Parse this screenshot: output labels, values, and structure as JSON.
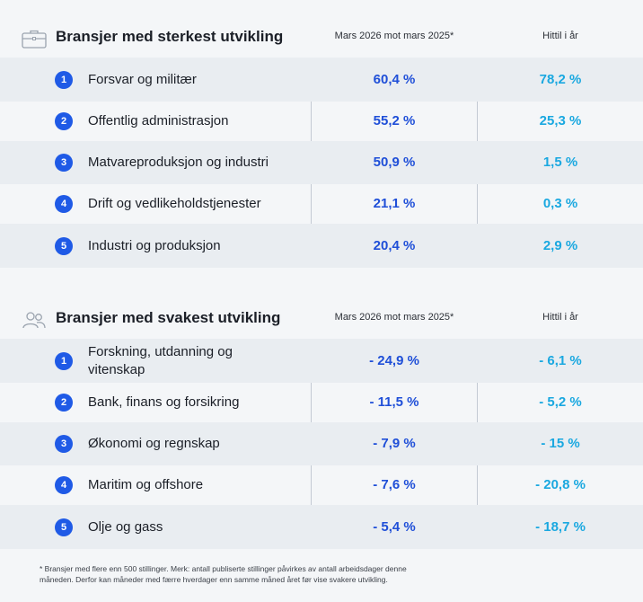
{
  "top": {
    "title": "Bransjer med sterkest utvikling",
    "icon": "briefcase-icon",
    "col1_header": "Mars 2026 mot mars 2025*",
    "col2_header": "Hittil i år",
    "rows": [
      {
        "rank": "1",
        "label": "Forsvar og militær",
        "value1": "60,4 %",
        "value2": "78,2 %"
      },
      {
        "rank": "2",
        "label": "Offentlig administrasjon",
        "value1": "55,2  %",
        "value2": "25,3 %"
      },
      {
        "rank": "3",
        "label": "Matvareproduksjon og industri",
        "value1": "50,9 %",
        "value2": "1,5 %"
      },
      {
        "rank": "4",
        "label": "Drift og vedlikeholdstjenester",
        "value1": "21,1 %",
        "value2": "0,3 %"
      },
      {
        "rank": "5",
        "label": "Industri og produksjon",
        "value1": "20,4 %",
        "value2": "2,9 %"
      }
    ]
  },
  "bottom": {
    "title": "Bransjer med svakest utvikling",
    "icon": "people-icon",
    "col1_header": "Mars 2026 mot mars 2025*",
    "col2_header": "Hittil i år",
    "rows": [
      {
        "rank": "1",
        "label": "Forskning, utdanning og vitenskap",
        "value1": "- 24,9 %",
        "value2": "- 6,1 %"
      },
      {
        "rank": "2",
        "label": "Bank, finans og forsikring",
        "value1": "- 11,5 %",
        "value2": "- 5,2 %"
      },
      {
        "rank": "3",
        "label": "Økonomi og regnskap",
        "value1": "- 7,9 %",
        "value2": "- 15 %"
      },
      {
        "rank": "4",
        "label": "Maritim og offshore",
        "value1": "- 7,6 %",
        "value2": "- 20,8 %"
      },
      {
        "rank": "5",
        "label": "Olje og gass",
        "value1": "- 5,4 %",
        "value2": "- 18,7 %"
      }
    ]
  },
  "footnote": "* Bransjer med flere enn 500 stillinger. Merk: antall publiserte stillinger påvirkes av antall arbeidsdager denne måneden. Derfor kan måneder med færre hverdager enn samme måned året før vise svakere utvikling.",
  "colors": {
    "rank_badge": "#1f5ae6",
    "value1": "#1f4fd8",
    "value2": "#1aa8e0",
    "row_shade": "#e9edf1"
  }
}
